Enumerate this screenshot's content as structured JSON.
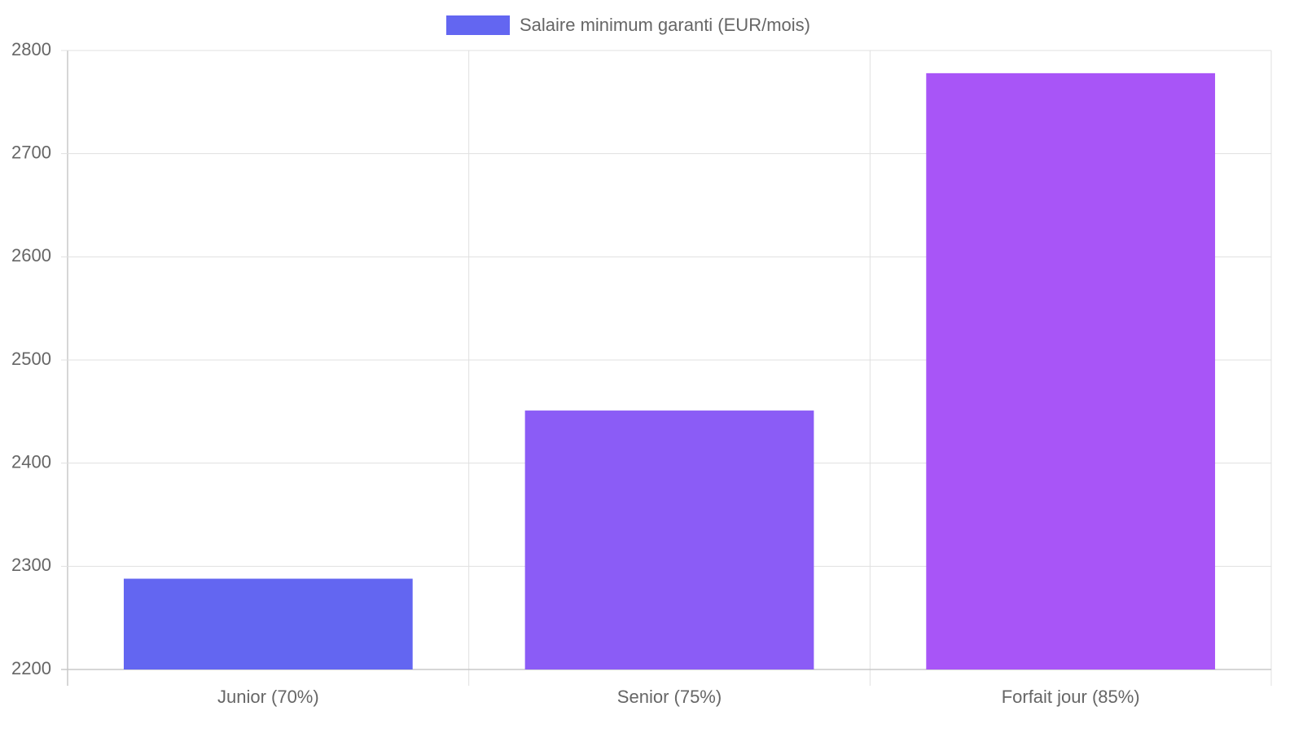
{
  "chart_data": {
    "type": "bar",
    "categories": [
      "Junior (70%)",
      "Senior (75%)",
      "Forfait jour (85%)"
    ],
    "series": [
      {
        "name": "Salaire minimum garanti (EUR/mois)",
        "color": "#6366f1",
        "values": [
          2288,
          2451,
          2778
        ]
      }
    ],
    "bar_colors": [
      "#6366f1",
      "#8b5cf6",
      "#a855f7"
    ],
    "ylim": [
      2200,
      2800
    ],
    "yticks": [
      2200,
      2300,
      2400,
      2500,
      2600,
      2700,
      2800
    ],
    "grid": true,
    "legend": "top"
  }
}
